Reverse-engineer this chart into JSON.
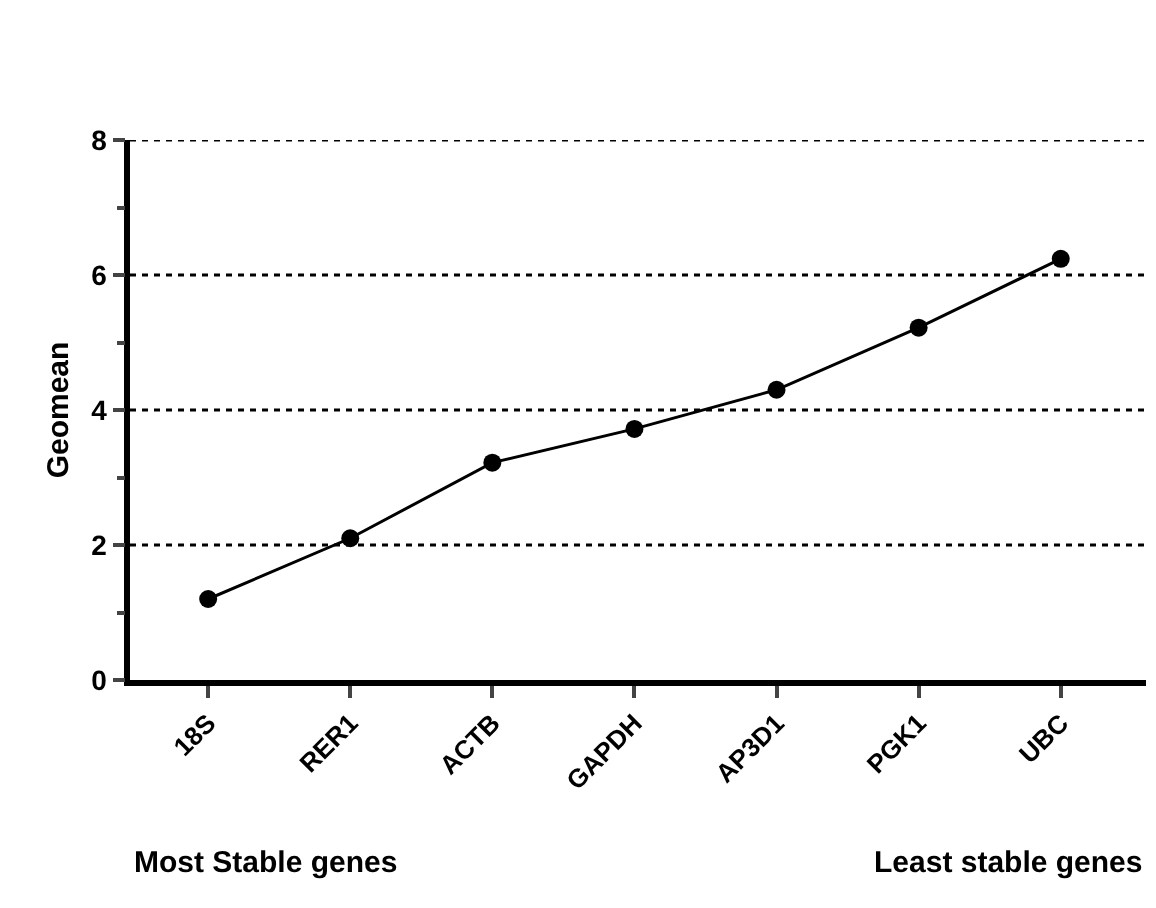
{
  "chart_data": {
    "type": "line",
    "ylabel": "Geomean",
    "categories": [
      "18S",
      "RER1",
      "ACTB",
      "GAPDH",
      "AP3D1",
      "PGK1",
      "UBC"
    ],
    "values": [
      1.2,
      2.1,
      3.22,
      3.72,
      4.3,
      5.22,
      6.24
    ],
    "color": "#000000",
    "marker": "circle",
    "line_style": "solid",
    "ylim": [
      0,
      8
    ],
    "yticks": [
      0,
      2,
      4,
      6,
      8
    ],
    "grid": "y",
    "annotations": [
      "Most Stable genes",
      "Least stable genes"
    ]
  }
}
